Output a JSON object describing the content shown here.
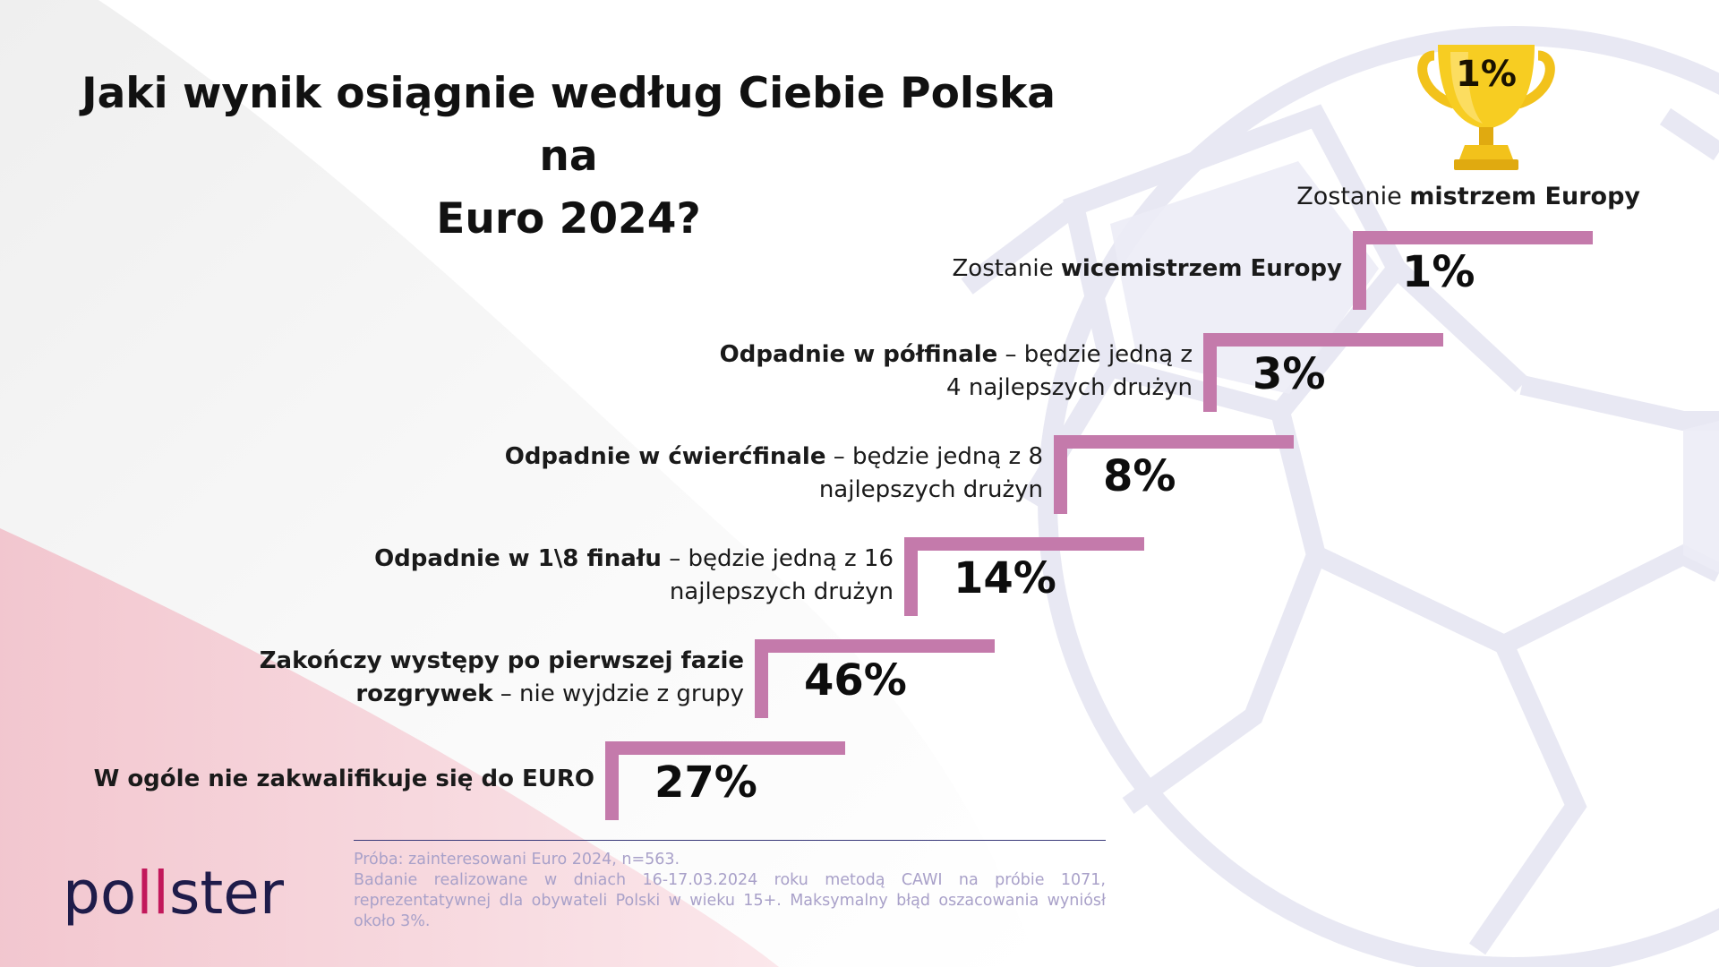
{
  "title": {
    "line1": "Jaki wynik osiągnie według Ciebie Polska na",
    "line2": "Euro 2024?"
  },
  "colors": {
    "step": "#c47aab",
    "flag_red": "#f3c6cf",
    "ball_lines": "#e8e8f3",
    "trophy_gold": "#f2c21b",
    "logo_text": "#1f1c4a",
    "logo_accent": "#c2185b",
    "note_text": "#a9a1c9"
  },
  "icons": {
    "trophy": "trophy-icon",
    "background": "football-icon"
  },
  "chart_data": {
    "type": "bar",
    "title": "Jaki wynik osiągnie według Ciebie Polska na Euro 2024?",
    "categories": [
      "W ogóle nie zakwalifikuje się do EURO",
      "Zakończy występy po pierwszej fazie rozgrywek – nie wyjdzie z grupy",
      "Odpadnie w 1\\8 finału – będzie jedną z 16 najlepszych drużyn",
      "Odpadnie w ćwierćfinale – będzie jedną z 8 najlepszych drużyn",
      "Odpadnie w półfinale – będzie jedną z 4 najlepszych drużyn",
      "Zostanie wicemistrzem Europy",
      "Zostanie mistrzem Europy"
    ],
    "values": [
      27,
      46,
      14,
      8,
      3,
      1,
      1
    ],
    "unit": "%",
    "steps": [
      {
        "bold": "W ogóle nie zakwalifikuje się do EURO",
        "rest": "",
        "line2": "",
        "value_label": "27%"
      },
      {
        "bold": "Zakończy występy po pierwszej fazie",
        "rest": "",
        "line2_bold": "rozgrywek",
        "line2": " – nie wyjdzie z grupy",
        "value_label": "46%"
      },
      {
        "bold": "Odpadnie w 1\\8 finału",
        "rest": " – będzie jedną z 16",
        "line2": "najlepszych drużyn",
        "value_label": "14%"
      },
      {
        "bold": "Odpadnie w ćwierćfinale",
        "rest": " – będzie jedną z 8",
        "line2": "najlepszych drużyn",
        "value_label": "8%"
      },
      {
        "bold": "Odpadnie w półfinale",
        "rest": " – będzie jedną z",
        "line2": "4 najlepszych drużyn",
        "value_label": "3%"
      },
      {
        "pre": "Zostanie ",
        "bold": "wicemistrzem Europy",
        "rest": "",
        "line2": "",
        "value_label": "1%"
      }
    ],
    "champion": {
      "pre": "Zostanie ",
      "bold": "mistrzem Europy",
      "value_label": "1%"
    }
  },
  "footnote": {
    "line1": "Próba: zainteresowani Euro 2024, n=563.",
    "line2": "Badanie realizowane w dniach 16-17.03.2024 roku metodą CAWI na próbie 1071, reprezentatywnej dla obywateli Polski w wieku 15+. Maksymalny błąd oszacowania wyniósł około 3%."
  },
  "logo": {
    "part1": "po",
    "accent": "ll",
    "part2": "ster"
  }
}
